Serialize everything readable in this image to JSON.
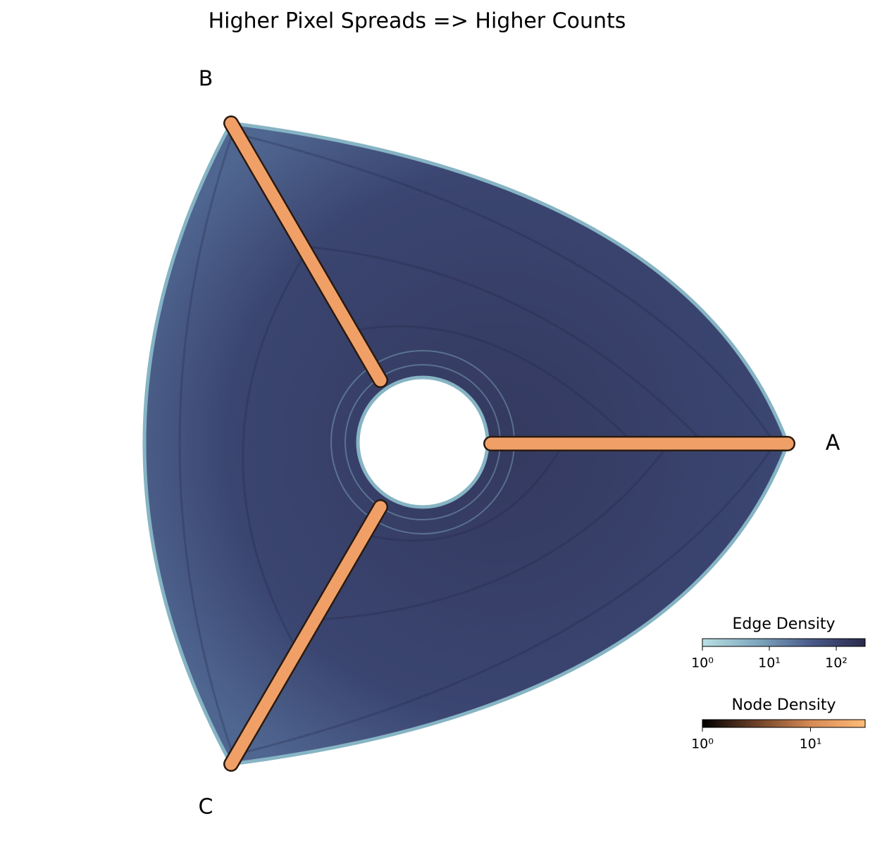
{
  "chart_data": {
    "type": "hive",
    "title": "Higher Pixel Spreads => Higher Counts",
    "axes": [
      {
        "label": "A"
      },
      {
        "label": "B"
      },
      {
        "label": "C"
      }
    ],
    "colorbars": [
      {
        "title": "Edge Density",
        "log": true,
        "xlim": [
          1,
          270
        ],
        "xticks": [
          {
            "value": 1,
            "label": "10⁰"
          },
          {
            "value": 10,
            "label": "10¹"
          },
          {
            "value": 100,
            "label": "10²"
          }
        ],
        "colors": [
          "#b9e0e4",
          "#7fa8bf",
          "#4a5a8a",
          "#2a2a4c"
        ]
      },
      {
        "title": "Node Density",
        "log": true,
        "xlim": [
          1,
          32
        ],
        "xticks": [
          {
            "value": 1,
            "label": "10⁰"
          },
          {
            "value": 10,
            "label": "10¹"
          }
        ],
        "colors": [
          "#000000",
          "#6e4128",
          "#d68a55",
          "#ffbb78"
        ]
      }
    ]
  }
}
